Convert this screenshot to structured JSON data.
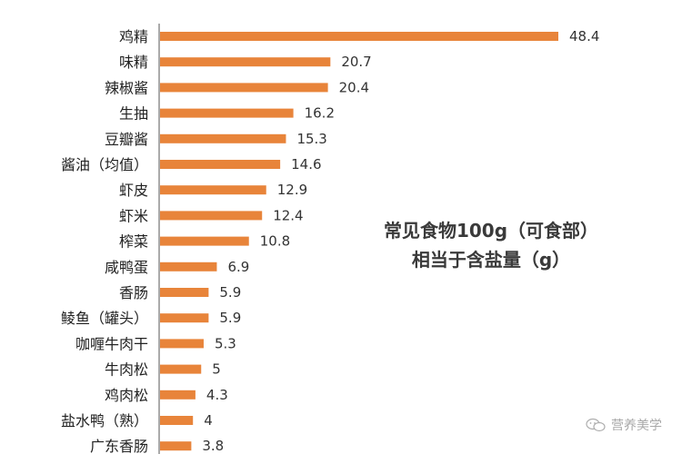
{
  "chart_data": {
    "type": "bar",
    "orientation": "horizontal",
    "title_lines": [
      "常见食物100g（可食部）",
      "相当于含盐量（g）"
    ],
    "categories": [
      "鸡精",
      "味精",
      "辣椒酱",
      "生抽",
      "豆瓣酱",
      "酱油（均值）",
      "虾皮",
      "虾米",
      "榨菜",
      "咸鸭蛋",
      "香肠",
      "鲮鱼（罐头）",
      "咖喱牛肉干",
      "牛肉松",
      "鸡肉松",
      "盐水鸭（熟）",
      "广东香肠"
    ],
    "values": [
      48.4,
      20.7,
      20.4,
      16.2,
      15.3,
      14.6,
      12.9,
      12.4,
      10.8,
      6.9,
      5.9,
      5.9,
      5.3,
      5,
      4.3,
      4,
      3.8
    ],
    "value_labels": [
      "48.4",
      "20.7",
      "20.4",
      "16.2",
      "15.3",
      "14.6",
      "12.9",
      "12.4",
      "10.8",
      "6.9",
      "5.9",
      "5.9",
      "5.3",
      "5",
      "4.3",
      "4",
      "3.8"
    ],
    "xlim": [
      0,
      48.4
    ],
    "bar_color": "#e8843a",
    "axis_color": "#555555",
    "grid": false,
    "legend": "none"
  },
  "watermark": {
    "text": "营养美学",
    "icon": "wechat-icon"
  }
}
